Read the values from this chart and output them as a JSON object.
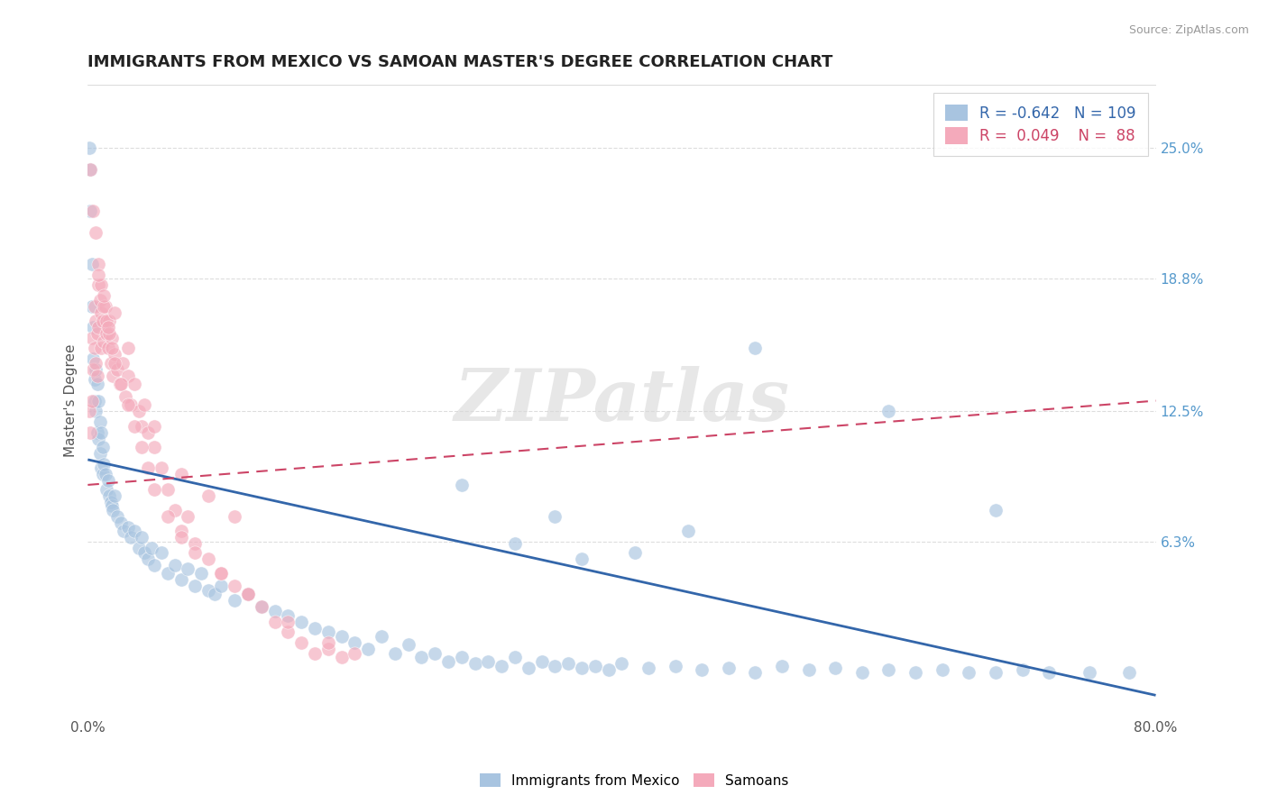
{
  "title": "IMMIGRANTS FROM MEXICO VS SAMOAN MASTER'S DEGREE CORRELATION CHART",
  "source_text": "Source: ZipAtlas.com",
  "ylabel": "Master's Degree",
  "right_ytick_labels": [
    "25.0%",
    "18.8%",
    "12.5%",
    "6.3%"
  ],
  "right_ytick_values": [
    0.25,
    0.188,
    0.125,
    0.063
  ],
  "xlim": [
    0.0,
    0.8
  ],
  "ylim": [
    -0.02,
    0.28
  ],
  "blue_color": "#A8C4E0",
  "pink_color": "#F4AABB",
  "blue_line_color": "#3366AA",
  "pink_line_color": "#CC4466",
  "legend_R_blue": "-0.642",
  "legend_N_blue": "109",
  "legend_R_pink": "0.049",
  "legend_N_pink": "88",
  "legend_label_blue": "Immigrants from Mexico",
  "legend_label_pink": "Samoans",
  "watermark": "ZIPatlas",
  "blue_trend_x0": 0.0,
  "blue_trend_y0": 0.102,
  "blue_trend_x1": 0.8,
  "blue_trend_y1": -0.01,
  "pink_trend_x0": 0.0,
  "pink_trend_y0": 0.09,
  "pink_trend_x1": 0.8,
  "pink_trend_y1": 0.13,
  "blue_scatter_x": [
    0.001,
    0.002,
    0.002,
    0.003,
    0.003,
    0.004,
    0.004,
    0.005,
    0.005,
    0.006,
    0.006,
    0.007,
    0.007,
    0.008,
    0.008,
    0.009,
    0.009,
    0.01,
    0.01,
    0.011,
    0.011,
    0.012,
    0.013,
    0.014,
    0.015,
    0.016,
    0.017,
    0.018,
    0.019,
    0.02,
    0.022,
    0.025,
    0.027,
    0.03,
    0.032,
    0.035,
    0.038,
    0.04,
    0.042,
    0.045,
    0.048,
    0.05,
    0.055,
    0.06,
    0.065,
    0.07,
    0.075,
    0.08,
    0.085,
    0.09,
    0.095,
    0.1,
    0.11,
    0.12,
    0.13,
    0.14,
    0.15,
    0.16,
    0.17,
    0.18,
    0.19,
    0.2,
    0.21,
    0.22,
    0.23,
    0.24,
    0.25,
    0.26,
    0.27,
    0.28,
    0.29,
    0.3,
    0.31,
    0.32,
    0.33,
    0.34,
    0.35,
    0.36,
    0.37,
    0.38,
    0.39,
    0.4,
    0.42,
    0.44,
    0.46,
    0.48,
    0.5,
    0.52,
    0.54,
    0.56,
    0.58,
    0.6,
    0.62,
    0.64,
    0.66,
    0.68,
    0.7,
    0.72,
    0.75,
    0.78,
    0.5,
    0.45,
    0.35,
    0.28,
    0.6,
    0.68,
    0.32,
    0.37,
    0.41
  ],
  "blue_scatter_y": [
    0.25,
    0.24,
    0.22,
    0.195,
    0.175,
    0.165,
    0.15,
    0.14,
    0.13,
    0.145,
    0.125,
    0.138,
    0.115,
    0.13,
    0.112,
    0.12,
    0.105,
    0.115,
    0.098,
    0.108,
    0.095,
    0.1,
    0.095,
    0.088,
    0.092,
    0.085,
    0.082,
    0.08,
    0.078,
    0.085,
    0.075,
    0.072,
    0.068,
    0.07,
    0.065,
    0.068,
    0.06,
    0.065,
    0.058,
    0.055,
    0.06,
    0.052,
    0.058,
    0.048,
    0.052,
    0.045,
    0.05,
    0.042,
    0.048,
    0.04,
    0.038,
    0.042,
    0.035,
    0.038,
    0.032,
    0.03,
    0.028,
    0.025,
    0.022,
    0.02,
    0.018,
    0.015,
    0.012,
    0.018,
    0.01,
    0.014,
    0.008,
    0.01,
    0.006,
    0.008,
    0.005,
    0.006,
    0.004,
    0.008,
    0.003,
    0.006,
    0.004,
    0.005,
    0.003,
    0.004,
    0.002,
    0.005,
    0.003,
    0.004,
    0.002,
    0.003,
    0.001,
    0.004,
    0.002,
    0.003,
    0.001,
    0.002,
    0.001,
    0.002,
    0.001,
    0.001,
    0.002,
    0.001,
    0.001,
    0.001,
    0.155,
    0.068,
    0.075,
    0.09,
    0.125,
    0.078,
    0.062,
    0.055,
    0.058
  ],
  "pink_scatter_x": [
    0.001,
    0.002,
    0.003,
    0.003,
    0.004,
    0.005,
    0.005,
    0.006,
    0.006,
    0.007,
    0.007,
    0.008,
    0.008,
    0.009,
    0.01,
    0.01,
    0.011,
    0.012,
    0.013,
    0.014,
    0.015,
    0.016,
    0.017,
    0.018,
    0.019,
    0.02,
    0.022,
    0.024,
    0.026,
    0.028,
    0.03,
    0.032,
    0.035,
    0.038,
    0.04,
    0.042,
    0.045,
    0.05,
    0.055,
    0.06,
    0.065,
    0.07,
    0.075,
    0.08,
    0.09,
    0.1,
    0.11,
    0.12,
    0.13,
    0.14,
    0.15,
    0.16,
    0.17,
    0.18,
    0.19,
    0.2,
    0.002,
    0.004,
    0.006,
    0.008,
    0.01,
    0.012,
    0.014,
    0.016,
    0.018,
    0.02,
    0.025,
    0.03,
    0.035,
    0.04,
    0.045,
    0.05,
    0.06,
    0.07,
    0.08,
    0.1,
    0.12,
    0.15,
    0.18,
    0.05,
    0.07,
    0.09,
    0.11,
    0.03,
    0.015,
    0.008,
    0.012,
    0.02
  ],
  "pink_scatter_y": [
    0.125,
    0.115,
    0.16,
    0.13,
    0.145,
    0.175,
    0.155,
    0.168,
    0.148,
    0.162,
    0.142,
    0.185,
    0.165,
    0.178,
    0.172,
    0.155,
    0.168,
    0.158,
    0.175,
    0.162,
    0.155,
    0.168,
    0.148,
    0.16,
    0.142,
    0.152,
    0.145,
    0.138,
    0.148,
    0.132,
    0.142,
    0.128,
    0.138,
    0.125,
    0.118,
    0.128,
    0.115,
    0.108,
    0.098,
    0.088,
    0.078,
    0.068,
    0.075,
    0.062,
    0.055,
    0.048,
    0.042,
    0.038,
    0.032,
    0.025,
    0.02,
    0.015,
    0.01,
    0.012,
    0.008,
    0.01,
    0.24,
    0.22,
    0.21,
    0.195,
    0.185,
    0.175,
    0.168,
    0.162,
    0.155,
    0.148,
    0.138,
    0.128,
    0.118,
    0.108,
    0.098,
    0.088,
    0.075,
    0.065,
    0.058,
    0.048,
    0.038,
    0.025,
    0.015,
    0.118,
    0.095,
    0.085,
    0.075,
    0.155,
    0.165,
    0.19,
    0.18,
    0.172
  ]
}
